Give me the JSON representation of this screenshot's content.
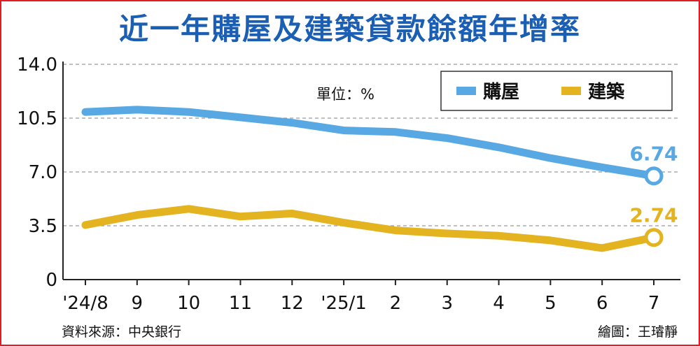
{
  "source": "資料來源：中央銀行",
  "credit": "繪圖：王璿靜",
  "colors": {
    "blue": "#58a8e3",
    "yellow": "#e3b320",
    "title": "#1a5fb4",
    "border": "#e31b23"
  },
  "chart_data": {
    "type": "line",
    "title": "近一年購屋及建築貸款餘額年增率",
    "unit_label": "單位：%",
    "categories": [
      "'24/8",
      "9",
      "10",
      "11",
      "12",
      "'25/1",
      "2",
      "3",
      "4",
      "5",
      "6",
      "7"
    ],
    "ylim": [
      0,
      14
    ],
    "yticks": [
      "0",
      "3.5",
      "7.0",
      "10.5",
      "14.0"
    ],
    "grid": true,
    "legend_position": "top-right",
    "series": [
      {
        "name": "購屋",
        "color": "#58a8e3",
        "values": [
          10.9,
          11.05,
          10.9,
          10.55,
          10.2,
          9.7,
          9.6,
          9.2,
          8.6,
          7.9,
          7.3,
          6.74
        ],
        "end_label": "6.74"
      },
      {
        "name": "建築",
        "color": "#e3b320",
        "values": [
          3.55,
          4.2,
          4.6,
          4.1,
          4.3,
          3.7,
          3.2,
          3.0,
          2.85,
          2.55,
          2.05,
          2.74
        ],
        "end_label": "2.74"
      }
    ]
  }
}
